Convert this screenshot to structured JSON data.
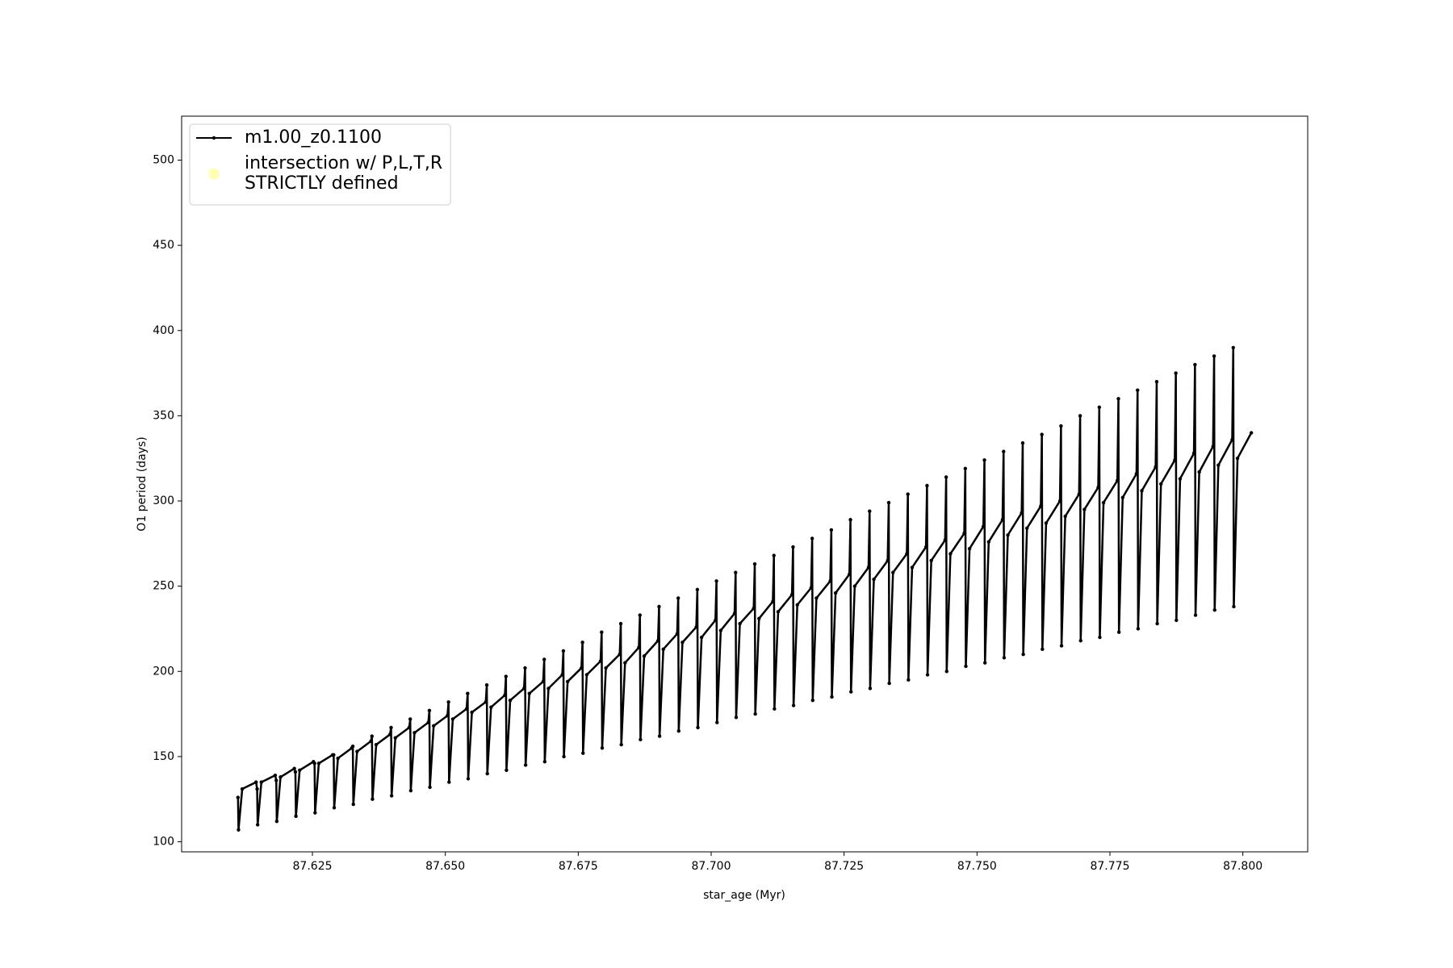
{
  "chart_data": {
    "type": "line",
    "xlabel": "star_age (Myr)",
    "ylabel": "O1 period (days)",
    "xlim": [
      87.6004,
      87.8122
    ],
    "ylim": [
      94.1,
      525.8
    ],
    "xticks": [
      87.625,
      {
        "value": 87.65,
        "label": "87.650"
      },
      87.675,
      {
        "value": 87.7,
        "label": "87.700"
      },
      87.725,
      {
        "value": 87.75,
        "label": "87.750"
      },
      87.775,
      {
        "value": 87.8,
        "label": "87.800"
      }
    ],
    "yticks": [
      100,
      150,
      200,
      250,
      300,
      350,
      400,
      450,
      500
    ],
    "legend": "upper left",
    "series": [
      {
        "name": "m1.00_z0.1100",
        "color": "#000000",
        "x": [
          87.611,
          87.6111,
          87.6118,
          87.6144,
          87.6146,
          87.6147,
          87.6154,
          87.618,
          87.6182,
          87.6183,
          87.619,
          87.6216,
          87.6218,
          87.6219,
          87.6226,
          87.6252,
          87.6254,
          87.6255,
          87.6262,
          87.6288,
          87.629,
          87.6291,
          87.6298,
          87.6324,
          87.6326,
          87.6327,
          87.6334,
          87.636,
          87.6362,
          87.6363,
          87.637,
          87.6396,
          87.6398,
          87.6399,
          87.6406,
          87.6432,
          87.6434,
          87.6435,
          87.6442,
          87.6468,
          87.647,
          87.6471,
          87.6478,
          87.6504,
          87.6506,
          87.6507,
          87.6514,
          87.654,
          87.6542,
          87.6543,
          87.655,
          87.6576,
          87.6578,
          87.6579,
          87.6586,
          87.6612,
          87.6614,
          87.6615,
          87.6622,
          87.6648,
          87.665,
          87.6651,
          87.6658,
          87.6684,
          87.6686,
          87.6687,
          87.6694,
          87.672,
          87.6722,
          87.6723,
          87.673,
          87.6756,
          87.6758,
          87.6759,
          87.6766,
          87.6792,
          87.6794,
          87.6795,
          87.6802,
          87.6828,
          87.683,
          87.6831,
          87.6838,
          87.6864,
          87.6866,
          87.6867,
          87.6874,
          87.69,
          87.6902,
          87.6903,
          87.691,
          87.6936,
          87.6938,
          87.6939,
          87.6946,
          87.6972,
          87.6974,
          87.6975,
          87.6982,
          87.7008,
          87.701,
          87.7011,
          87.7018,
          87.7044,
          87.7046,
          87.7047,
          87.7054,
          87.708,
          87.7082,
          87.7083,
          87.709,
          87.7116,
          87.7118,
          87.7119,
          87.7126,
          87.7152,
          87.7154,
          87.7155,
          87.7162,
          87.7188,
          87.719,
          87.7191,
          87.7198,
          87.7224,
          87.7226,
          87.7227,
          87.7234,
          87.726,
          87.7262,
          87.7263,
          87.727,
          87.7296,
          87.7298,
          87.7299,
          87.7306,
          87.7332,
          87.7334,
          87.7335,
          87.7342,
          87.7368,
          87.737,
          87.7371,
          87.7378,
          87.7404,
          87.7406,
          87.7407,
          87.7414,
          87.744,
          87.7442,
          87.7443,
          87.745,
          87.7476,
          87.7478,
          87.7479,
          87.7486,
          87.7512,
          87.7514,
          87.7515,
          87.7522,
          87.7548,
          87.755,
          87.7551,
          87.7558,
          87.7584,
          87.7586,
          87.7587,
          87.7594,
          87.762,
          87.7622,
          87.7623,
          87.763,
          87.7656,
          87.7658,
          87.7659,
          87.7666,
          87.7692,
          87.7694,
          87.7695,
          87.7702,
          87.7728,
          87.773,
          87.7731,
          87.7738,
          87.7764,
          87.7766,
          87.7767,
          87.7774,
          87.78,
          87.7802,
          87.7803,
          87.781,
          87.7836,
          87.7838,
          87.7839,
          87.7846,
          87.7872,
          87.7874,
          87.7875,
          87.7882,
          87.7908,
          87.791,
          87.7911,
          87.7918,
          87.7944,
          87.7946,
          87.7947,
          87.7954,
          87.798,
          87.7982,
          87.7983,
          87.799,
          87.8016
        ],
        "values": [
          126,
          107,
          131,
          135,
          131,
          110,
          135,
          139,
          136,
          112,
          138,
          143,
          141,
          115,
          142,
          147,
          146,
          117,
          146,
          151,
          151,
          120,
          149,
          155,
          156,
          122,
          153,
          159,
          162,
          125,
          157,
          163,
          167,
          127,
          161,
          167,
          172,
          130,
          164,
          170,
          177,
          132,
          168,
          174,
          182,
          135,
          172,
          178,
          187,
          137,
          176,
          182,
          192,
          140,
          179,
          186,
          197,
          142,
          183,
          190,
          202,
          145,
          187,
          194,
          207,
          147,
          190,
          198,
          212,
          150,
          194,
          202,
          217,
          152,
          198,
          206,
          223,
          155,
          202,
          210,
          228,
          157,
          205,
          214,
          233,
          160,
          209,
          218,
          238,
          162,
          213,
          222,
          243,
          165,
          217,
          226,
          248,
          167,
          220,
          230,
          253,
          170,
          224,
          234,
          258,
          173,
          228,
          237,
          263,
          175,
          231,
          241,
          268,
          178,
          235,
          245,
          273,
          180,
          239,
          249,
          278,
          183,
          243,
          253,
          283,
          185,
          246,
          257,
          289,
          188,
          250,
          261,
          294,
          190,
          254,
          265,
          299,
          193,
          258,
          269,
          304,
          195,
          261,
          273,
          309,
          198,
          265,
          277,
          314,
          200,
          269,
          281,
          319,
          203,
          272,
          285,
          324,
          205,
          276,
          289,
          329,
          208,
          280,
          293,
          334,
          210,
          284,
          297,
          339,
          213,
          287,
          300,
          344,
          215,
          291,
          304,
          350,
          218,
          295,
          308,
          355,
          220,
          299,
          312,
          360,
          223,
          302,
          316,
          365,
          225,
          306,
          320,
          370,
          228,
          310,
          324,
          375,
          230,
          313,
          328,
          380,
          233,
          317,
          332,
          385,
          236,
          321,
          336,
          390,
          238,
          325,
          340
        ]
      },
      {
        "name": "intersection w/ P,L,T,R\nSTRICTLY defined",
        "color": "#ffffb3",
        "marker": "circle",
        "x": [],
        "values": []
      }
    ]
  }
}
